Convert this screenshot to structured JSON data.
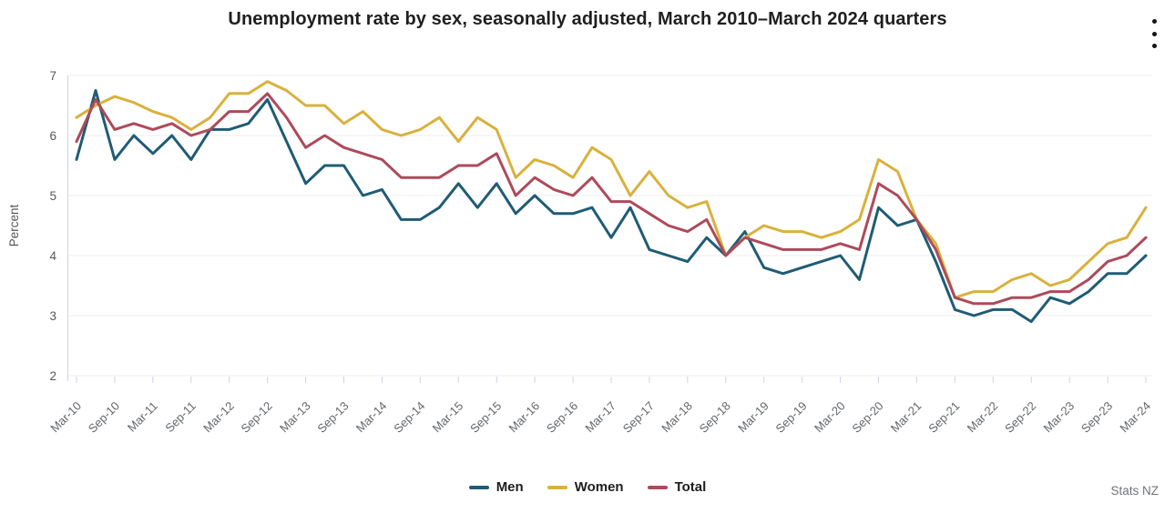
{
  "header": {
    "menu_icon": "kebab-vertical-icon"
  },
  "footer": {
    "source": "Stats NZ"
  },
  "chart_data": {
    "type": "line",
    "title": "Unemployment rate by sex, seasonally adjusted, March 2010–March 2024 quarters",
    "ylabel": "Percent",
    "ylim": [
      2,
      7
    ],
    "yticks": [
      2,
      3,
      4,
      5,
      6,
      7
    ],
    "grid": "horizontal",
    "legend_position": "bottom",
    "x_unit": "quarter",
    "quarters": [
      "Mar-10",
      "Jun-10",
      "Sep-10",
      "Dec-10",
      "Mar-11",
      "Jun-11",
      "Sep-11",
      "Dec-11",
      "Mar-12",
      "Jun-12",
      "Sep-12",
      "Dec-12",
      "Mar-13",
      "Jun-13",
      "Sep-13",
      "Dec-13",
      "Mar-14",
      "Jun-14",
      "Sep-14",
      "Dec-14",
      "Mar-15",
      "Jun-15",
      "Sep-15",
      "Dec-15",
      "Mar-16",
      "Jun-16",
      "Sep-16",
      "Dec-16",
      "Mar-17",
      "Jun-17",
      "Sep-17",
      "Dec-17",
      "Mar-18",
      "Jun-18",
      "Sep-18",
      "Dec-18",
      "Mar-19",
      "Jun-19",
      "Sep-19",
      "Dec-19",
      "Mar-20",
      "Jun-20",
      "Sep-20",
      "Dec-20",
      "Mar-21",
      "Jun-21",
      "Sep-21",
      "Dec-21",
      "Mar-22",
      "Jun-22",
      "Sep-22",
      "Dec-22",
      "Mar-23",
      "Jun-23",
      "Sep-23",
      "Dec-23",
      "Mar-24"
    ],
    "x_tick_indices": [
      0,
      2,
      4,
      6,
      8,
      10,
      12,
      14,
      16,
      18,
      20,
      22,
      24,
      26,
      28,
      30,
      32,
      34,
      36,
      38,
      40,
      42,
      44,
      46,
      48,
      50,
      52,
      54,
      56
    ],
    "series": [
      {
        "name": "Men",
        "color": "#1f5c75",
        "values": [
          5.6,
          6.75,
          5.6,
          6.0,
          5.7,
          6.0,
          5.6,
          6.1,
          6.1,
          6.2,
          6.6,
          5.9,
          5.2,
          5.5,
          5.5,
          5.0,
          5.1,
          4.6,
          4.6,
          4.8,
          5.2,
          4.8,
          5.2,
          4.7,
          5.0,
          4.7,
          4.7,
          4.8,
          4.3,
          4.8,
          4.1,
          4.0,
          3.9,
          4.3,
          4.0,
          4.4,
          3.8,
          3.7,
          3.8,
          3.9,
          4.0,
          3.6,
          4.8,
          4.5,
          4.6,
          3.9,
          3.1,
          3.0,
          3.1,
          3.1,
          2.9,
          3.3,
          3.2,
          3.4,
          3.7,
          3.7,
          4.0
        ]
      },
      {
        "name": "Women",
        "color": "#d9b13c",
        "values": [
          6.3,
          6.5,
          6.65,
          6.55,
          6.4,
          6.3,
          6.1,
          6.3,
          6.7,
          6.7,
          6.9,
          6.75,
          6.5,
          6.5,
          6.2,
          6.4,
          6.1,
          6.0,
          6.1,
          6.3,
          5.9,
          6.3,
          6.1,
          5.3,
          5.6,
          5.5,
          5.3,
          5.8,
          5.6,
          5.0,
          5.4,
          5.0,
          4.8,
          4.9,
          4.0,
          4.3,
          4.5,
          4.4,
          4.4,
          4.3,
          4.4,
          4.6,
          5.6,
          5.4,
          4.6,
          4.2,
          3.3,
          3.4,
          3.4,
          3.6,
          3.7,
          3.5,
          3.6,
          3.9,
          4.2,
          4.3,
          4.8
        ]
      },
      {
        "name": "Total",
        "color": "#ad4a5b",
        "values": [
          5.9,
          6.6,
          6.1,
          6.2,
          6.1,
          6.2,
          6.0,
          6.1,
          6.4,
          6.4,
          6.7,
          6.3,
          5.8,
          6.0,
          5.8,
          5.7,
          5.6,
          5.3,
          5.3,
          5.3,
          5.5,
          5.5,
          5.7,
          5.0,
          5.3,
          5.1,
          5.0,
          5.3,
          4.9,
          4.9,
          4.7,
          4.5,
          4.4,
          4.6,
          4.0,
          4.3,
          4.2,
          4.1,
          4.1,
          4.1,
          4.2,
          4.1,
          5.2,
          5.0,
          4.6,
          4.1,
          3.3,
          3.2,
          3.2,
          3.3,
          3.3,
          3.4,
          3.4,
          3.6,
          3.9,
          4.0,
          4.3
        ]
      }
    ]
  }
}
